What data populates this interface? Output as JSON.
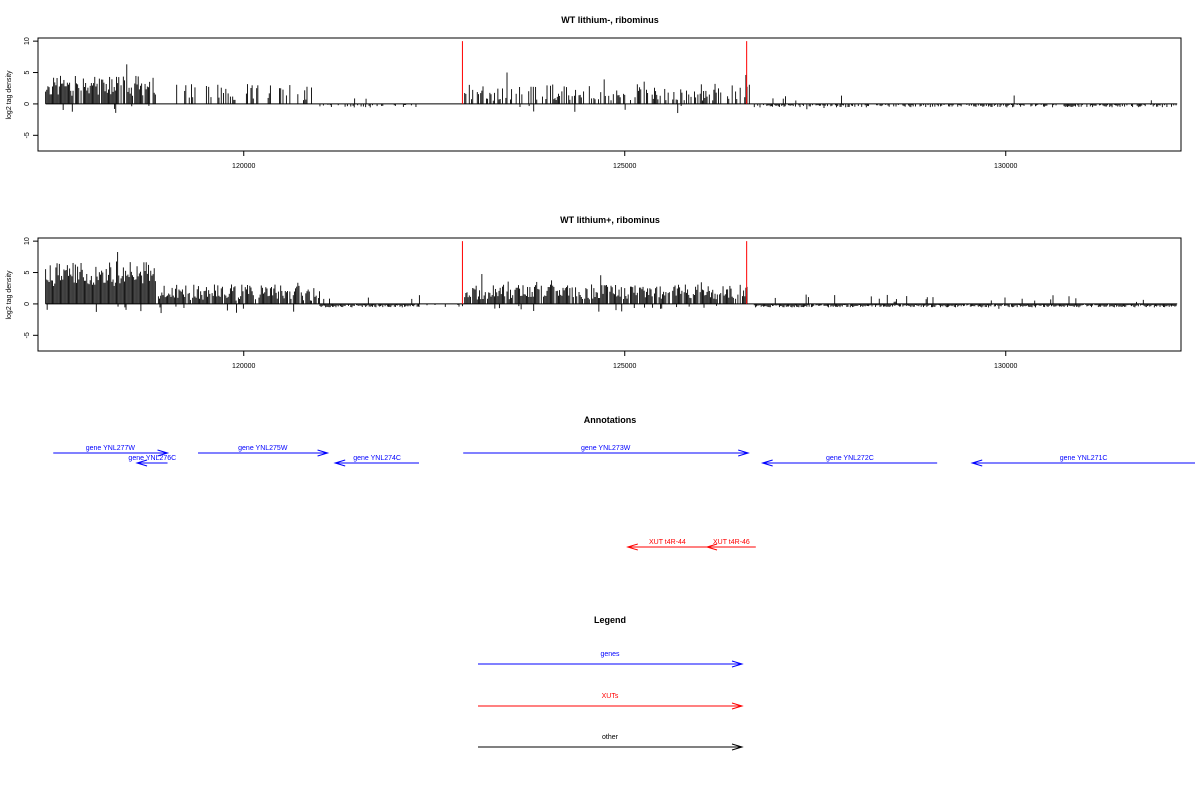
{
  "chart_data": [
    {
      "type": "bar",
      "title": "WT lithium-, ribominus",
      "ylabel": "log2 tag density",
      "xlim": [
        117300,
        132300
      ],
      "ylim": [
        -7.5,
        10.5
      ],
      "yticks": [
        -5,
        0,
        5,
        10
      ],
      "yticklabels": [
        "-5",
        "0",
        "5",
        "10"
      ],
      "xticks": [
        120000,
        125000,
        130000
      ],
      "xticklabels": [
        "120000",
        "125000",
        "130000"
      ],
      "baseline": 0,
      "bar_color": "#000000",
      "marker_color": "#ff0000",
      "markers": [
        {
          "x": 122870,
          "value": 10
        },
        {
          "x": 126600,
          "value": 10
        }
      ],
      "segments": [
        {
          "from": 117400,
          "to": 118850,
          "mean": 2.9,
          "spread": 1.6,
          "density": 0.9,
          "sign": 1
        },
        {
          "from": 119000,
          "to": 121000,
          "mean": 1.8,
          "spread": 1.4,
          "density": 0.3,
          "sign": 1
        },
        {
          "from": 121000,
          "to": 122300,
          "mean": -1.8,
          "spread": 1.4,
          "density": 0.25,
          "sign": -1
        },
        {
          "from": 122900,
          "to": 126650,
          "mean": 1.8,
          "spread": 1.3,
          "density": 0.45,
          "sign": 1
        },
        {
          "from": 126700,
          "to": 132250,
          "mean": -1.9,
          "spread": 1.4,
          "density": 0.55,
          "sign": -1
        }
      ]
    },
    {
      "type": "bar",
      "title": "WT lithium+, ribominus",
      "ylabel": "log2 tag density",
      "xlim": [
        117300,
        132300
      ],
      "ylim": [
        -7.5,
        10.5
      ],
      "yticks": [
        -5,
        0,
        5,
        10
      ],
      "yticklabels": [
        "-5",
        "0",
        "5",
        "10"
      ],
      "xticks": [
        120000,
        125000,
        130000
      ],
      "xticklabels": [
        "120000",
        "125000",
        "130000"
      ],
      "baseline": 0,
      "bar_color": "#000000",
      "marker_color": "#ff0000",
      "markers": [
        {
          "x": 122870,
          "value": 10
        },
        {
          "x": 126600,
          "value": 10
        }
      ],
      "segments": [
        {
          "from": 117400,
          "to": 118850,
          "mean": 4.8,
          "spread": 2.0,
          "density": 1.0,
          "sign": 1
        },
        {
          "from": 118850,
          "to": 121000,
          "mean": 1.8,
          "spread": 1.3,
          "density": 0.85,
          "sign": 1
        },
        {
          "from": 121000,
          "to": 122300,
          "mean": -3.8,
          "spread": 1.8,
          "density": 0.95,
          "sign": -1
        },
        {
          "from": 122300,
          "to": 122880,
          "mean": -0.8,
          "spread": 0.6,
          "density": 0.25,
          "sign": -1
        },
        {
          "from": 122900,
          "to": 126650,
          "mean": 1.9,
          "spread": 1.2,
          "density": 0.85,
          "sign": 1
        },
        {
          "from": 126700,
          "to": 132250,
          "mean": -2.6,
          "spread": 1.5,
          "density": 0.95,
          "sign": -1
        }
      ]
    }
  ],
  "annotations": {
    "title": "Annotations",
    "genes_color": "#0000ff",
    "xuts_color": "#ff0000",
    "genes": [
      {
        "label": "gene YNL277W",
        "from": 117500,
        "to": 119000,
        "strand": "+",
        "row": 0
      },
      {
        "label": "gene YNL276C",
        "from": 119000,
        "to": 118600,
        "strand": "-",
        "row": 1
      },
      {
        "label": "gene YNL275W",
        "from": 119400,
        "to": 121100,
        "strand": "+",
        "row": 0
      },
      {
        "label": "gene YNL274C",
        "from": 122300,
        "to": 121200,
        "strand": "-",
        "row": 1
      },
      {
        "label": "gene YNL273W",
        "from": 122880,
        "to": 126620,
        "strand": "+",
        "row": 0
      },
      {
        "label": "gene YNL272C",
        "from": 129100,
        "to": 126810,
        "strand": "-",
        "row": 1
      },
      {
        "label": "gene YNL271C",
        "from": 132600,
        "to": 129560,
        "strand": "-",
        "row": 1
      }
    ],
    "xuts": [
      {
        "label": "XUT t4R-44",
        "from": 126080,
        "to": 125040,
        "strand": "-"
      },
      {
        "label": "XUT t4R-46",
        "from": 126720,
        "to": 126080,
        "strand": "-"
      }
    ]
  },
  "legend": {
    "title": "Legend",
    "items": [
      {
        "label": "genes",
        "color": "#0000ff"
      },
      {
        "label": "XUTs",
        "color": "#ff0000"
      },
      {
        "label": "other",
        "color": "#000000"
      }
    ]
  }
}
